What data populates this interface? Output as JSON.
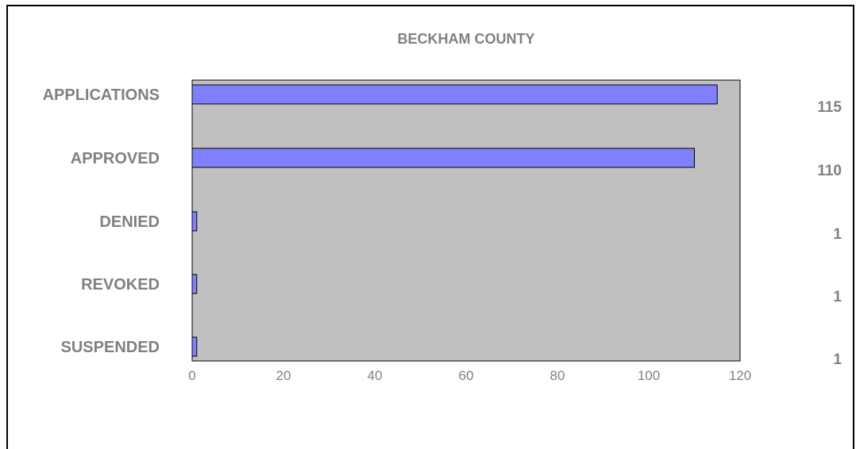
{
  "chart_data": {
    "type": "bar",
    "orientation": "horizontal",
    "title": "BECKHAM COUNTY",
    "categories": [
      "APPLICATIONS",
      "APPROVED",
      "DENIED",
      "REVOKED",
      "SUSPENDED"
    ],
    "values": [
      115,
      110,
      1,
      1,
      1
    ],
    "value_labels": [
      "115",
      "110",
      "1",
      "1",
      "1"
    ],
    "xlim": [
      0,
      120
    ],
    "x_ticks": [
      0,
      20,
      40,
      60,
      80,
      100,
      120
    ],
    "x_tick_labels": [
      "0",
      "20",
      "40",
      "60",
      "80",
      "100",
      "120"
    ],
    "xlabel": "",
    "ylabel": "",
    "grid": false,
    "legend": "none",
    "colors": {
      "bar_fill": "#8080ff",
      "bar_stroke": "#000000",
      "plot_background": "#c0c0c0",
      "text": "#808080"
    }
  }
}
